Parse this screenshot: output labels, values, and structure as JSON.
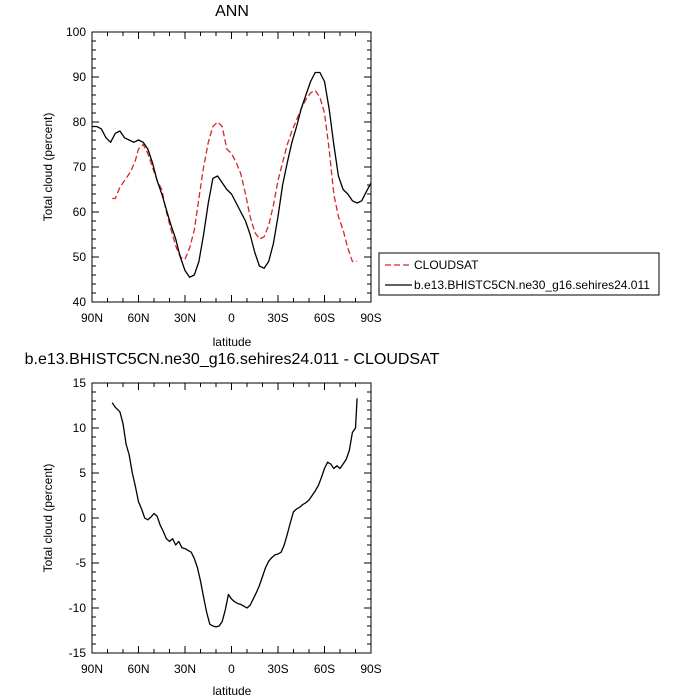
{
  "chart_data": [
    {
      "type": "line",
      "title": "ANN",
      "xlabel": "latitude",
      "ylabel": "Total cloud (percent)",
      "xticks": [
        "90N",
        "60N",
        "30N",
        "0",
        "30S",
        "60S",
        "90S"
      ],
      "xlim": [
        90,
        -90
      ],
      "ylim": [
        40,
        100
      ],
      "yticks": [
        40,
        50,
        60,
        70,
        80,
        90,
        100
      ],
      "legend_position": "right",
      "series": [
        {
          "name": "CLOUDSAT",
          "color": "#d62728",
          "dash": "dashed",
          "x": [
            77,
            75,
            72,
            68,
            65,
            62,
            60,
            57,
            54,
            51,
            48,
            45,
            42,
            39,
            36,
            33,
            30,
            27,
            24,
            21,
            18,
            15,
            12,
            9,
            6,
            3,
            0,
            -3,
            -6,
            -9,
            -12,
            -15,
            -18,
            -21,
            -24,
            -27,
            -30,
            -33,
            -36,
            -39,
            -42,
            -45,
            -48,
            -51,
            -54,
            -57,
            -60,
            -63,
            -66,
            -69,
            -72,
            -75,
            -78,
            -81
          ],
          "y": [
            63,
            63,
            65.5,
            67.5,
            69,
            71.5,
            74,
            75,
            73,
            70,
            67,
            65,
            60,
            56,
            52.5,
            50,
            49.5,
            52,
            56,
            63,
            70,
            75.5,
            79,
            80,
            79,
            74,
            73,
            71,
            68.5,
            64,
            59,
            55.5,
            54,
            54.5,
            57,
            61.5,
            67,
            71,
            75,
            78,
            80.5,
            83,
            85,
            86.5,
            87,
            85.5,
            82,
            74,
            64,
            59,
            56,
            52,
            49,
            49
          ]
        },
        {
          "name": "b.e13.BHISTC5CN.ne30_g16.sehires24.011",
          "color": "#000000",
          "dash": "solid",
          "x": [
            90,
            87,
            84,
            81,
            78,
            75,
            72,
            69,
            66,
            63,
            60,
            57,
            54,
            51,
            48,
            45,
            42,
            39,
            36,
            33,
            30,
            27,
            24,
            21,
            18,
            15,
            12,
            9,
            6,
            3,
            0,
            -3,
            -6,
            -9,
            -12,
            -15,
            -18,
            -21,
            -24,
            -27,
            -30,
            -33,
            -36,
            -39,
            -42,
            -45,
            -48,
            -51,
            -54,
            -57,
            -60,
            -63,
            -66,
            -69,
            -72,
            -75,
            -78,
            -81,
            -84,
            -87,
            -90
          ],
          "y": [
            79,
            79,
            78.5,
            76.5,
            75.5,
            77.5,
            78,
            76.5,
            76,
            75.5,
            76,
            75.5,
            74,
            71,
            67,
            64,
            60.5,
            57,
            54,
            50,
            47,
            45.5,
            46,
            49,
            55,
            62,
            67.5,
            68,
            66.5,
            65,
            64,
            62,
            60,
            58,
            55,
            51,
            48,
            47.5,
            49,
            53,
            59,
            66,
            71,
            75.5,
            79,
            83,
            86,
            89,
            91,
            91,
            89,
            83,
            75,
            68,
            65,
            64,
            62.5,
            62,
            62.5,
            64.5,
            66.5
          ]
        }
      ]
    },
    {
      "type": "line",
      "title": "b.e13.BHISTC5CN.ne30_g16.sehires24.011 - CLOUDSAT",
      "xlabel": "latitude",
      "ylabel": "Total cloud (percent)",
      "xticks": [
        "90N",
        "60N",
        "30N",
        "0",
        "30S",
        "60S",
        "90S"
      ],
      "xlim": [
        90,
        -90
      ],
      "ylim": [
        -15,
        15
      ],
      "yticks": [
        -15,
        -10,
        -5,
        0,
        5,
        10,
        15
      ],
      "series": [
        {
          "color": "#000000",
          "dash": "solid",
          "x": [
            77,
            75,
            72,
            70,
            68,
            66,
            64,
            62,
            60,
            58,
            56,
            54,
            52,
            50,
            48,
            46,
            44,
            42,
            40,
            38,
            36,
            34,
            32,
            30,
            28,
            26,
            24,
            22,
            20,
            18,
            16,
            14,
            12,
            10,
            8,
            6,
            4,
            2,
            0,
            -2,
            -4,
            -6,
            -8,
            -10,
            -12,
            -14,
            -16,
            -18,
            -20,
            -22,
            -24,
            -26,
            -28,
            -30,
            -32,
            -34,
            -36,
            -38,
            -40,
            -42,
            -44,
            -46,
            -48,
            -50,
            -52,
            -54,
            -56,
            -58,
            -60,
            -62,
            -64,
            -66,
            -68,
            -70,
            -72,
            -74,
            -76,
            -78,
            -80,
            -81
          ],
          "y": [
            12.8,
            12.3,
            11.8,
            10.5,
            8.2,
            7.0,
            5.0,
            3.5,
            1.8,
            1.0,
            0,
            -0.2,
            0.1,
            0.5,
            0.2,
            -0.8,
            -1.5,
            -2.3,
            -2.6,
            -2.3,
            -3.0,
            -2.6,
            -3.3,
            -3.4,
            -3.6,
            -3.8,
            -4.5,
            -5.5,
            -7.0,
            -8.8,
            -10.5,
            -11.8,
            -12.0,
            -12.1,
            -12.0,
            -11.5,
            -10.2,
            -8.5,
            -9.0,
            -9.3,
            -9.5,
            -9.6,
            -9.8,
            -10.0,
            -9.7,
            -9.0,
            -8.3,
            -7.5,
            -6.5,
            -5.5,
            -4.8,
            -4.4,
            -4.1,
            -4.0,
            -3.8,
            -3.0,
            -1.8,
            -0.5,
            0.7,
            1.0,
            1.2,
            1.5,
            1.7,
            2.0,
            2.5,
            3.0,
            3.6,
            4.5,
            5.5,
            6.2,
            6.0,
            5.5,
            5.8,
            5.5,
            6.0,
            6.5,
            7.5,
            9.5,
            10.0,
            13.3
          ]
        }
      ]
    }
  ]
}
